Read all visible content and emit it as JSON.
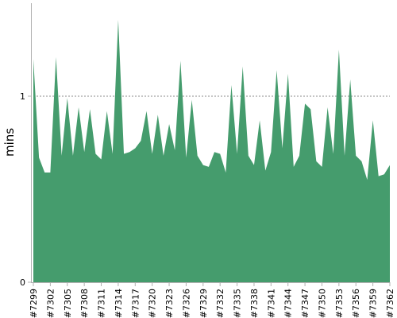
{
  "chart_data": {
    "type": "area",
    "title": "",
    "xlabel": "",
    "ylabel": "mins",
    "ylim": [
      0,
      1.5
    ],
    "y_ticks": [
      {
        "value": 0,
        "label": "0"
      },
      {
        "value": 1,
        "label": "1"
      }
    ],
    "grid": "dashed horizontal line at 1",
    "legend": "none",
    "color": "#459c6d",
    "x": [
      "#7299",
      "#7300",
      "#7301",
      "#7302",
      "#7303",
      "#7304",
      "#7305",
      "#7306",
      "#7307",
      "#7308",
      "#7309",
      "#7310",
      "#7311",
      "#7312",
      "#7313",
      "#7314",
      "#7315",
      "#7316",
      "#7317",
      "#7318",
      "#7319",
      "#7320",
      "#7321",
      "#7322",
      "#7323",
      "#7324",
      "#7325",
      "#7326",
      "#7327",
      "#7328",
      "#7329",
      "#7330",
      "#7331",
      "#7332",
      "#7333",
      "#7334",
      "#7335",
      "#7336",
      "#7337",
      "#7338",
      "#7339",
      "#7340",
      "#7341",
      "#7342",
      "#7343",
      "#7344",
      "#7345",
      "#7346",
      "#7347",
      "#7348",
      "#7349",
      "#7350",
      "#7351",
      "#7352",
      "#7353",
      "#7354",
      "#7355",
      "#7356",
      "#7357",
      "#7358",
      "#7359",
      "#7360",
      "#7361",
      "#7362"
    ],
    "x_tick_labels": [
      "#7299",
      "#7302",
      "#7305",
      "#7308",
      "#7311",
      "#7314",
      "#7317",
      "#7320",
      "#7323",
      "#7326",
      "#7329",
      "#7332",
      "#7335",
      "#7338",
      "#7341",
      "#7344",
      "#7347",
      "#7350",
      "#7353",
      "#7356",
      "#7359",
      "#7362"
    ],
    "values": [
      1.2,
      0.67,
      0.59,
      0.59,
      1.21,
      0.68,
      0.99,
      0.68,
      0.94,
      0.7,
      0.93,
      0.69,
      0.66,
      0.92,
      0.69,
      1.41,
      0.69,
      0.7,
      0.72,
      0.76,
      0.92,
      0.69,
      0.9,
      0.68,
      0.85,
      0.71,
      1.19,
      0.67,
      0.98,
      0.68,
      0.63,
      0.62,
      0.7,
      0.69,
      0.59,
      1.06,
      0.69,
      1.16,
      0.68,
      0.63,
      0.87,
      0.6,
      0.7,
      1.14,
      0.72,
      1.12,
      0.62,
      0.68,
      0.96,
      0.93,
      0.65,
      0.62,
      0.94,
      0.69,
      1.25,
      0.68,
      1.09,
      0.68,
      0.65,
      0.55,
      0.87,
      0.57,
      0.58,
      0.63
    ]
  }
}
